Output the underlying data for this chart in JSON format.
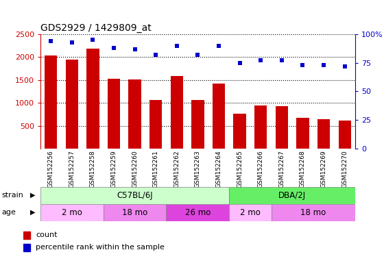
{
  "title": "GDS2929 / 1429809_at",
  "samples": [
    "GSM152256",
    "GSM152257",
    "GSM152258",
    "GSM152259",
    "GSM152260",
    "GSM152261",
    "GSM152262",
    "GSM152263",
    "GSM152264",
    "GSM152265",
    "GSM152266",
    "GSM152267",
    "GSM152268",
    "GSM152269",
    "GSM152270"
  ],
  "counts": [
    2030,
    1950,
    2180,
    1530,
    1510,
    1060,
    1580,
    1060,
    1420,
    770,
    940,
    930,
    670,
    650,
    620
  ],
  "percentile": [
    94,
    93,
    95,
    88,
    87,
    82,
    90,
    82,
    90,
    75,
    77,
    77,
    73,
    73,
    72
  ],
  "bar_color": "#cc0000",
  "dot_color": "#0000cc",
  "ylim_left": [
    0,
    2500
  ],
  "ylim_right": [
    0,
    100
  ],
  "yticks_left": [
    500,
    1000,
    1500,
    2000,
    2500
  ],
  "yticks_right": [
    0,
    25,
    50,
    75,
    100
  ],
  "strain_labels": [
    {
      "label": "C57BL/6J",
      "start": 0,
      "end": 8,
      "color": "#ccffcc"
    },
    {
      "label": "DBA/2J",
      "start": 9,
      "end": 14,
      "color": "#66ee66"
    }
  ],
  "age_labels": [
    {
      "label": "2 mo",
      "start": 0,
      "end": 2,
      "color": "#ffbbff"
    },
    {
      "label": "18 mo",
      "start": 3,
      "end": 5,
      "color": "#ee88ee"
    },
    {
      "label": "26 mo",
      "start": 6,
      "end": 8,
      "color": "#dd44dd"
    },
    {
      "label": "2 mo",
      "start": 9,
      "end": 10,
      "color": "#ffbbff"
    },
    {
      "label": "18 mo",
      "start": 11,
      "end": 14,
      "color": "#ee88ee"
    }
  ],
  "legend_count_color": "#cc0000",
  "legend_dot_color": "#0000cc",
  "background_color": "#ffffff",
  "plot_bg_color": "#ffffff",
  "tick_area_bg": "#d0d0d0"
}
